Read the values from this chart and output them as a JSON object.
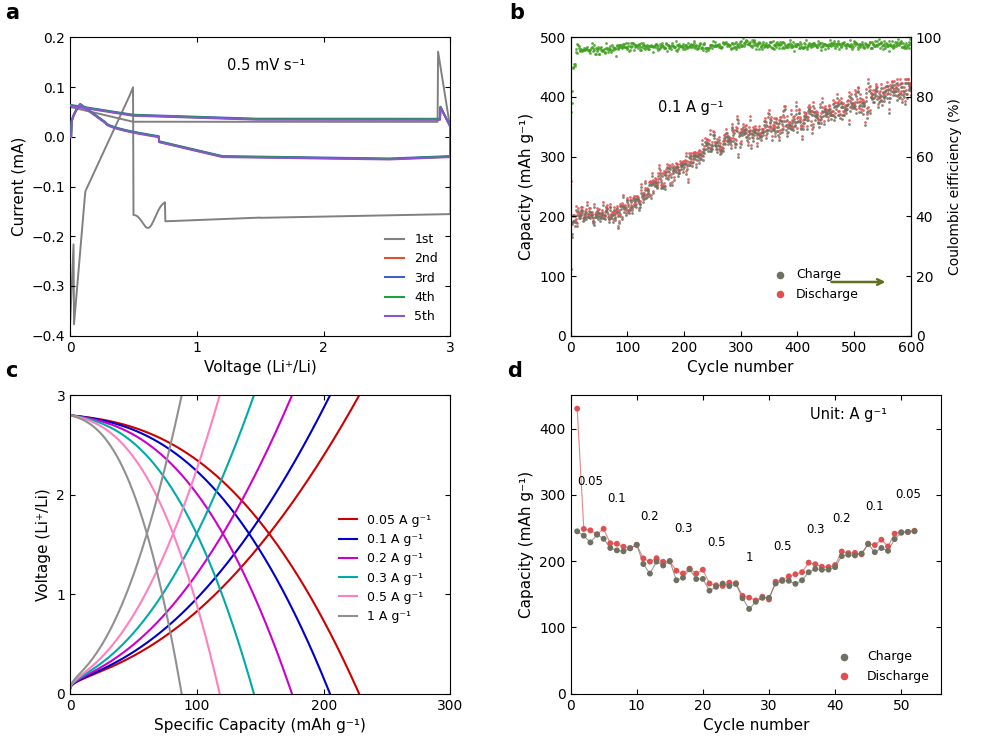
{
  "panel_a": {
    "label": "a",
    "annotation": "0.5 mV s⁻¹",
    "xlabel": "Voltage (Li⁺/Li)",
    "ylabel": "Current (mA)",
    "xlim": [
      0,
      3
    ],
    "ylim": [
      -0.4,
      0.2
    ],
    "yticks": [
      -0.4,
      -0.3,
      -0.2,
      -0.1,
      0.0,
      0.1,
      0.2
    ],
    "xticks": [
      0,
      1,
      2,
      3
    ],
    "legend_labels": [
      "1st",
      "2nd",
      "3rd",
      "4th",
      "5th"
    ],
    "colors": [
      "#808080",
      "#e05030",
      "#4060c8",
      "#20a040",
      "#8855cc"
    ]
  },
  "panel_b": {
    "label": "b",
    "annotation": "0.1 A g⁻¹",
    "xlabel": "Cycle number",
    "ylabel": "Capacity (mAh g⁻¹)",
    "ylabel2": "Coulombic eifficiency (%)",
    "xlim": [
      0,
      600
    ],
    "ylim": [
      0,
      500
    ],
    "ylim2": [
      0,
      100
    ],
    "yticks": [
      0,
      100,
      200,
      300,
      400,
      500
    ],
    "yticks2": [
      0,
      20,
      40,
      60,
      80,
      100
    ],
    "xticks": [
      0,
      100,
      200,
      300,
      400,
      500,
      600
    ],
    "charge_color": "#707060",
    "discharge_color": "#e05050",
    "ce_color": "#40a020"
  },
  "panel_c": {
    "label": "c",
    "xlabel": "Specific Capacity (mAh g⁻¹)",
    "ylabel": "Voltage (Li⁺/Li)",
    "xlim": [
      0,
      300
    ],
    "ylim": [
      0,
      3
    ],
    "yticks": [
      0,
      1,
      2,
      3
    ],
    "xticks": [
      0,
      100,
      200,
      300
    ],
    "rates": [
      "0.05 A g⁻¹",
      "0.1 A g⁻¹",
      "0.2 A g⁻¹",
      "0.3 A g⁻¹",
      "0.5 A g⁻¹",
      "1 A g⁻¹"
    ],
    "colors": [
      "#cc0000",
      "#0000cc",
      "#cc00cc",
      "#00aaaa",
      "#ff80c0",
      "#909090"
    ],
    "charge_caps": [
      228,
      205,
      175,
      145,
      118,
      88
    ],
    "discharge_caps": [
      228,
      205,
      175,
      145,
      118,
      88
    ]
  },
  "panel_d": {
    "label": "d",
    "annotation": "Unit: A g⁻¹",
    "xlabel": "Cycle number",
    "ylabel": "Capacity (mAh g⁻¹)",
    "xlim": [
      0,
      56
    ],
    "ylim": [
      0,
      450
    ],
    "yticks": [
      0,
      100,
      200,
      300,
      400
    ],
    "xticks": [
      0,
      10,
      20,
      30,
      40,
      50
    ],
    "charge_color": "#707060",
    "discharge_color": "#e05050"
  }
}
